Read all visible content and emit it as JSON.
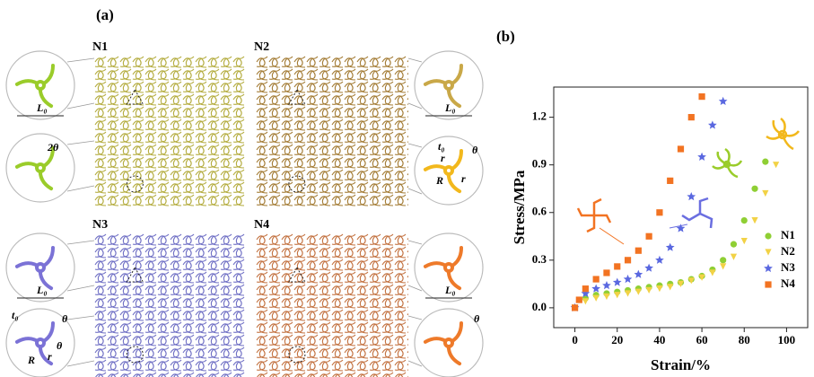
{
  "panel_a": {
    "label": "(a)",
    "lattices": [
      {
        "name": "N1",
        "color": "#b3ab3c"
      },
      {
        "name": "N2",
        "color": "#a27a32"
      },
      {
        "name": "N3",
        "color": "#6e6ec4"
      },
      {
        "name": "N4",
        "color": "#c2703e"
      }
    ],
    "insets": [
      {
        "color": "#9acc2a",
        "labels": [
          "L₀"
        ]
      },
      {
        "color": "#9acc2a",
        "labels": [
          "2θ"
        ]
      },
      {
        "color": "#c9a848",
        "labels": [
          "L₀"
        ]
      },
      {
        "color": "#f2b81c",
        "labels": [
          "t₀",
          "r",
          "θ",
          "R",
          "r"
        ]
      },
      {
        "color": "#7b72d6",
        "labels": [
          "L₀"
        ]
      },
      {
        "color": "#7b72d6",
        "labels": [
          "t₀",
          "θ",
          "θ",
          "R",
          "r"
        ]
      },
      {
        "color": "#ee7a2a",
        "labels": [
          "L₀"
        ]
      },
      {
        "color": "#ee7a2a",
        "labels": [
          "θ"
        ]
      }
    ]
  },
  "chart_data": {
    "type": "scatter",
    "label": "(b)",
    "x_label": "Strain/%",
    "y_label": "Stress/MPa",
    "xlim": [
      -10,
      110
    ],
    "ylim": [
      -0.125,
      1.39
    ],
    "xticks": [
      0,
      20,
      40,
      60,
      80,
      100
    ],
    "yticks": [
      {
        "value": 0,
        "label": "0.0"
      },
      {
        "value": 0.3,
        "label": "0.3"
      },
      {
        "value": 0.6,
        "label": "0.6"
      },
      {
        "value": 0.9,
        "label": "0.9"
      },
      {
        "value": 1.2,
        "label": "1.2"
      }
    ],
    "series": [
      {
        "name": "N1",
        "color": "#8fcf34",
        "marker": "circle",
        "x": [
          0,
          5,
          10,
          15,
          20,
          25,
          30,
          35,
          40,
          45,
          50,
          55,
          60,
          65,
          70,
          75,
          80,
          85,
          90
        ],
        "values": [
          0,
          0.06,
          0.08,
          0.09,
          0.1,
          0.11,
          0.12,
          0.13,
          0.14,
          0.15,
          0.16,
          0.18,
          0.2,
          0.24,
          0.3,
          0.4,
          0.55,
          0.75,
          0.92
        ]
      },
      {
        "name": "N2",
        "color": "#f2d246",
        "marker": "triangle",
        "x": [
          0,
          5,
          10,
          15,
          20,
          25,
          30,
          35,
          40,
          45,
          50,
          55,
          60,
          65,
          70,
          75,
          80,
          85,
          90,
          95
        ],
        "values": [
          0,
          0.04,
          0.06,
          0.07,
          0.08,
          0.09,
          0.1,
          0.11,
          0.12,
          0.13,
          0.15,
          0.17,
          0.19,
          0.22,
          0.26,
          0.32,
          0.42,
          0.55,
          0.72,
          0.9
        ]
      },
      {
        "name": "N3",
        "color": "#5a68e0",
        "marker": "star",
        "x": [
          0,
          5,
          10,
          15,
          20,
          25,
          30,
          35,
          40,
          45,
          50,
          55,
          60,
          65,
          70
        ],
        "values": [
          0,
          0.09,
          0.12,
          0.14,
          0.16,
          0.18,
          0.21,
          0.25,
          0.3,
          0.38,
          0.5,
          0.7,
          0.95,
          1.15,
          1.3
        ]
      },
      {
        "name": "N4",
        "color": "#f27322",
        "marker": "square",
        "x": [
          0,
          2,
          5,
          10,
          15,
          20,
          25,
          30,
          35,
          40,
          45,
          50,
          55,
          60
        ],
        "values": [
          0,
          0.05,
          0.12,
          0.18,
          0.22,
          0.26,
          0.3,
          0.36,
          0.45,
          0.6,
          0.8,
          1.0,
          1.2,
          1.33
        ]
      }
    ]
  }
}
